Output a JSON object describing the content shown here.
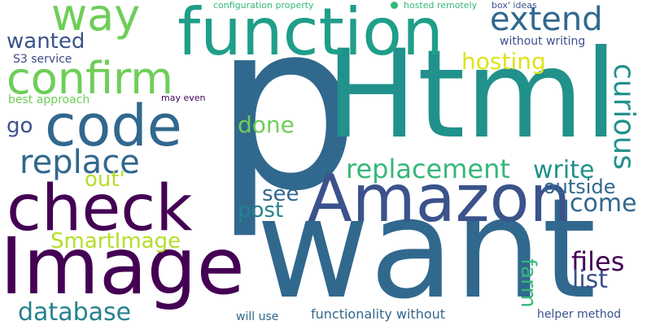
{
  "palette": {
    "dark_purple": "#440154",
    "indigo": "#3b528b",
    "slate_blue": "#3e4989",
    "steel_blue": "#31688e",
    "teal_blue": "#26828e",
    "teal": "#21918c",
    "green_teal": "#1f9e89",
    "sea_green": "#35b779",
    "light_green": "#6ece58",
    "lime": "#b5de2b",
    "yellow": "#dfe318"
  },
  "words": {
    "p": "p",
    "html": "Html",
    "want": "want",
    "amazon": "Amazon",
    "image": "Image",
    "check": "check",
    "function": "function",
    "code": "code",
    "confirm": "confirm",
    "way": "way",
    "extend": "extend",
    "replace": "replace",
    "replacement": "replacement",
    "write": "write",
    "come": "come",
    "outside": "outside",
    "hosting": "hosting",
    "curious": "curious",
    "done": "done",
    "see": "see",
    "post": "post",
    "files": "files",
    "list": "list",
    "farm": "farm",
    "smartimage": "SmartImage",
    "out": "out'",
    "database": "database",
    "wanted": "wanted",
    "go": "go",
    "s3_service": "S3 service",
    "best_approach": "best approach",
    "may_even": "may even",
    "configuration_property": "configuration property",
    "hosted_remotely": "hosted remotely",
    "box_ideas": "box' ideas",
    "without_writing": "without writing",
    "will_use": "will use",
    "functionality_without": "functionality without",
    "helper_method": "helper method"
  }
}
